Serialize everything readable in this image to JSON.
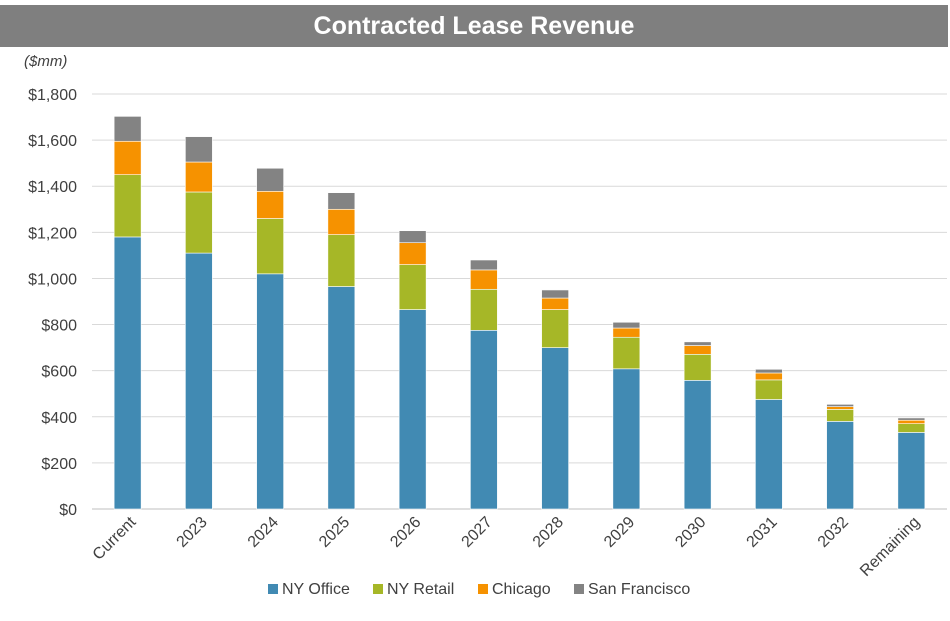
{
  "chart_data": {
    "type": "bar",
    "stacked": true,
    "title": "Contracted Lease Revenue",
    "unit_label": "($mm)",
    "categories": [
      "Current",
      "2023",
      "2024",
      "2025",
      "2026",
      "2027",
      "2028",
      "2029",
      "2030",
      "2031",
      "2032",
      "Remaining"
    ],
    "series": [
      {
        "name": "NY Office",
        "color": "#418ab3",
        "values": [
          1180,
          1110,
          1020,
          965,
          865,
          775,
          700,
          608,
          558,
          475,
          380,
          332
        ]
      },
      {
        "name": "NY Retail",
        "color": "#a6b727",
        "values": [
          270,
          265,
          240,
          225,
          195,
          178,
          165,
          137,
          113,
          85,
          52,
          38
        ]
      },
      {
        "name": "Chicago",
        "color": "#f69200",
        "values": [
          145,
          130,
          118,
          110,
          95,
          84,
          50,
          40,
          38,
          30,
          12,
          15
        ]
      },
      {
        "name": "San Francisco",
        "color": "#838383",
        "values": [
          108,
          110,
          100,
          72,
          52,
          43,
          35,
          25,
          16,
          16,
          10,
          10
        ]
      }
    ],
    "yticks": [
      "$0",
      "$200",
      "$400",
      "$600",
      "$800",
      "$1,000",
      "$1,200",
      "$1,400",
      "$1,600",
      "$1,800"
    ],
    "ylim": [
      0,
      1800
    ],
    "grid": true,
    "legend_position": "bottom"
  }
}
